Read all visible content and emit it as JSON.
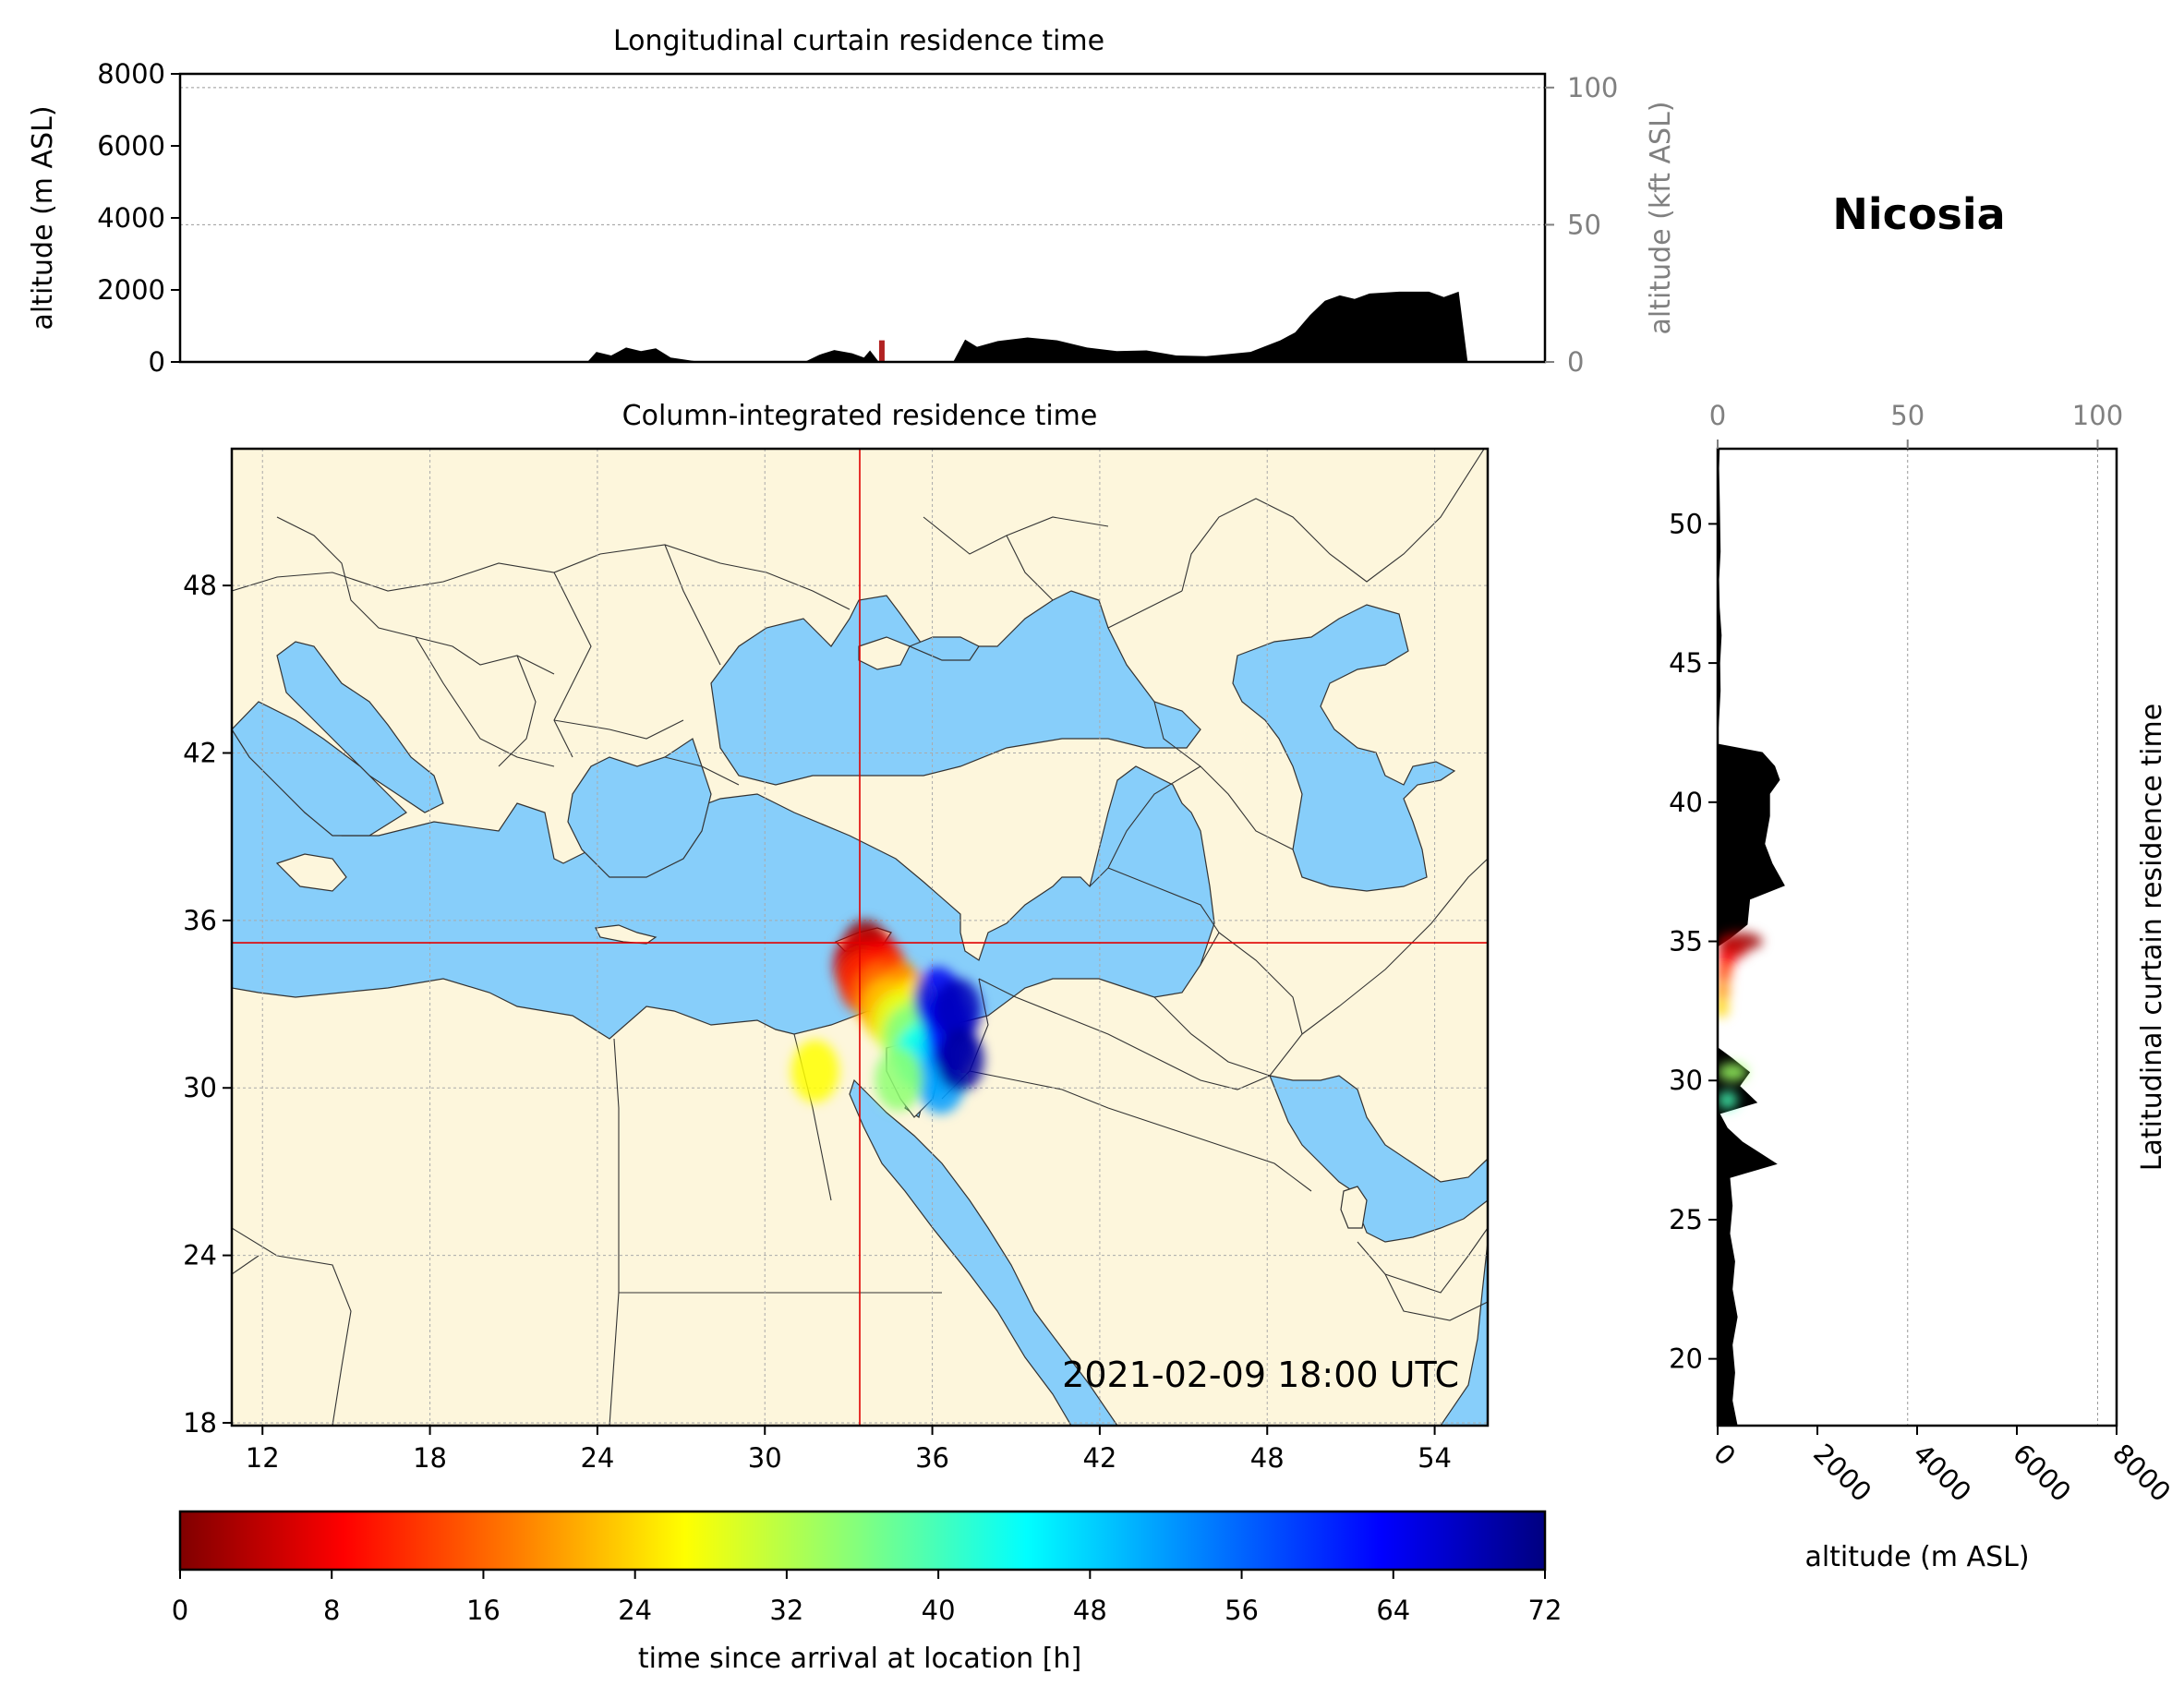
{
  "station": "Nicosia",
  "timestamp": "2021-02-09 18:00 UTC",
  "colors": {
    "land": "#fdf6dc",
    "sea": "#87cefa",
    "terrain": "#000000",
    "crosshair": "#e00000",
    "border": "#333333"
  },
  "chart_data": [
    {
      "id": "longitudinal",
      "type": "area",
      "title": "Longitudinal curtain residence time",
      "ylabel": "altitude (m ASL)",
      "ylabel_right": "altitude (kft ASL)",
      "ylim": [
        0,
        8000
      ],
      "y_ticks": [
        "0",
        "2000",
        "4000",
        "6000",
        "8000"
      ],
      "right_ticks": [
        "0",
        "50",
        "100"
      ],
      "right_tick_values_kft": [
        0,
        50,
        100
      ],
      "grid": true,
      "x": [
        10,
        23.7,
        24.0,
        24.5,
        25.0,
        25.5,
        26.0,
        26.5,
        27.5,
        31.0,
        31.5,
        32.0,
        32.6,
        33.0,
        33.2,
        33.5,
        34.0,
        36.0,
        36.4,
        36.8,
        37.5,
        38.5,
        39.5,
        40.5,
        41.5,
        42.5,
        43.5,
        44.5,
        45.0,
        46.0,
        47.0,
        47.5,
        48.0,
        48.5,
        49.0,
        49.5,
        50.0,
        51.0,
        52.0,
        52.5,
        53.0,
        53.3
      ],
      "terrain_altitude_m": [
        0,
        0,
        280,
        180,
        400,
        300,
        380,
        120,
        0,
        0,
        200,
        330,
        240,
        120,
        320,
        0,
        0,
        0,
        620,
        420,
        580,
        680,
        600,
        400,
        300,
        320,
        180,
        160,
        200,
        280,
        600,
        820,
        1300,
        1700,
        1850,
        1750,
        1900,
        1950,
        1950,
        1800,
        1950,
        0
      ],
      "residence_marker": {
        "x": 33.6,
        "altitude_m": 600
      }
    },
    {
      "id": "column",
      "type": "heatmap",
      "title": "Column-integrated residence time",
      "x_ticks": [
        "12",
        "18",
        "24",
        "30",
        "36",
        "42",
        "48",
        "54"
      ],
      "y_ticks": [
        "18",
        "24",
        "30",
        "36",
        "42",
        "48"
      ],
      "xlim": [
        10.9,
        55.9
      ],
      "ylim": [
        17.9,
        52.9
      ],
      "crosshair": {
        "lon": 33.4,
        "lat": 35.2
      },
      "plume": [
        {
          "lon": 33.6,
          "lat": 34.9,
          "hours": 1
        },
        {
          "lon": 33.9,
          "lat": 34.6,
          "hours": 4
        },
        {
          "lon": 33.3,
          "lat": 34.4,
          "hours": 6
        },
        {
          "lon": 34.2,
          "lat": 34.2,
          "hours": 9
        },
        {
          "lon": 33.5,
          "lat": 33.8,
          "hours": 12
        },
        {
          "lon": 34.5,
          "lat": 33.7,
          "hours": 14
        },
        {
          "lon": 34.0,
          "lat": 33.3,
          "hours": 17
        },
        {
          "lon": 35.0,
          "lat": 33.3,
          "hours": 20
        },
        {
          "lon": 34.3,
          "lat": 32.8,
          "hours": 23
        },
        {
          "lon": 35.3,
          "lat": 32.8,
          "hours": 26
        },
        {
          "lon": 34.7,
          "lat": 32.3,
          "hours": 29
        },
        {
          "lon": 35.6,
          "lat": 32.3,
          "hours": 32
        },
        {
          "lon": 35.1,
          "lat": 31.8,
          "hours": 36
        },
        {
          "lon": 35.9,
          "lat": 31.6,
          "hours": 40
        },
        {
          "lon": 35.5,
          "lat": 31.1,
          "hours": 44
        },
        {
          "lon": 36.1,
          "lat": 30.8,
          "hours": 48
        },
        {
          "lon": 36.3,
          "lat": 30.2,
          "hours": 52
        },
        {
          "lon": 36.5,
          "lat": 32.4,
          "hours": 58
        },
        {
          "lon": 36.7,
          "lat": 31.6,
          "hours": 62
        },
        {
          "lon": 36.2,
          "lat": 33.2,
          "hours": 64
        },
        {
          "lon": 36.9,
          "lat": 32.8,
          "hours": 68
        },
        {
          "lon": 37.0,
          "lat": 31.0,
          "hours": 70
        },
        {
          "lon": 31.8,
          "lat": 30.6,
          "hours": 27
        },
        {
          "lon": 34.8,
          "lat": 30.3,
          "hours": 35
        }
      ]
    },
    {
      "id": "latitudinal",
      "type": "area",
      "title": "Latitudinal curtain residence time",
      "xlabel": "altitude (m ASL)",
      "xlim": [
        0,
        8000
      ],
      "x_ticks": [
        "0",
        "2000",
        "4000",
        "6000",
        "8000"
      ],
      "top_ticks": [
        "0",
        "50",
        "100"
      ],
      "top_tick_values_kft": [
        0,
        50,
        100
      ],
      "y_ticks": [
        "20",
        "25",
        "30",
        "35",
        "40",
        "45",
        "50"
      ],
      "ylim": [
        17.6,
        52.7
      ],
      "grid": true,
      "lat": [
        17.6,
        18.5,
        19.5,
        20.5,
        21.5,
        22.5,
        23.5,
        24.5,
        25.5,
        26.5,
        27.0,
        27.8,
        28.3,
        28.8,
        29.2,
        29.8,
        30.3,
        30.8,
        31.2,
        31.7,
        34.8,
        35.1,
        35.6,
        36.5,
        37.0,
        37.8,
        38.5,
        39.5,
        40.3,
        40.8,
        41.3,
        41.8,
        42.1,
        43.0,
        44.0,
        45.0,
        46.0,
        47.0,
        48.0,
        49.0,
        50.0,
        51.0,
        52.0,
        52.7
      ],
      "terrain_altitude_m": [
        400,
        300,
        350,
        300,
        400,
        300,
        350,
        250,
        300,
        250,
        1200,
        500,
        200,
        50,
        800,
        450,
        650,
        300,
        0,
        0,
        0,
        250,
        600,
        650,
        1350,
        1100,
        950,
        1050,
        1050,
        1250,
        1150,
        900,
        0,
        30,
        60,
        50,
        80,
        40,
        30,
        60,
        50,
        40,
        30,
        40
      ],
      "residence": [
        {
          "lat": 35.0,
          "altitude_m": 900,
          "hours": 2
        },
        {
          "lat": 34.7,
          "altitude_m": 600,
          "hours": 5
        },
        {
          "lat": 34.3,
          "altitude_m": 350,
          "hours": 9
        },
        {
          "lat": 33.8,
          "altitude_m": 250,
          "hours": 14
        },
        {
          "lat": 33.2,
          "altitude_m": 200,
          "hours": 19
        },
        {
          "lat": 32.6,
          "altitude_m": 150,
          "hours": 24
        },
        {
          "lat": 30.3,
          "altitude_m": 600,
          "hours": 34
        },
        {
          "lat": 29.3,
          "altitude_m": 400,
          "hours": 40
        }
      ]
    },
    {
      "id": "colorbar",
      "type": "heatmap",
      "label": "time since arrival at location [h]",
      "range": [
        0,
        72
      ],
      "ticks": [
        "0",
        "8",
        "16",
        "24",
        "32",
        "40",
        "48",
        "56",
        "64",
        "72"
      ],
      "colormap": "jet_r"
    }
  ]
}
